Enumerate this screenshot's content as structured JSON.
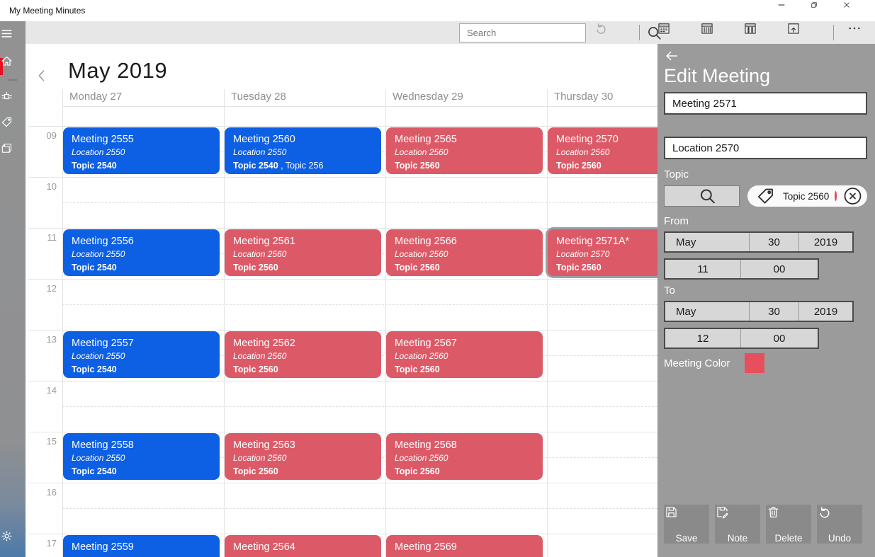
{
  "window": {
    "title": "My Meeting Minutes"
  },
  "titlebar_controls": [
    {
      "icon": "minimize-icon"
    },
    {
      "icon": "restore-icon"
    },
    {
      "icon": "close-icon"
    }
  ],
  "toolbar": {
    "search_placeholder": "Search",
    "search_icon": "search-icon",
    "icons": [
      {
        "icon": "undo-icon",
        "disabled": true
      },
      {
        "icon": "calendar-month-icon"
      },
      {
        "icon": "calendar-week-icon"
      },
      {
        "icon": "calendar-workweek-icon"
      },
      {
        "icon": "calendar-today-icon"
      },
      {
        "icon": "ellipsis-icon"
      }
    ]
  },
  "sidebar": {
    "items": [
      {
        "icon": "menu-icon"
      },
      {
        "icon": "home-icon",
        "active": true
      },
      {
        "icon": "meetings-icon"
      },
      {
        "icon": "tag-icon"
      },
      {
        "icon": "archive-icon"
      },
      {
        "icon": "settings-icon"
      }
    ]
  },
  "calendar": {
    "title": "May 2019",
    "back_icon": "chevron-left-icon",
    "days": [
      "Monday 27",
      "Tuesday 28",
      "Wednesday 29",
      "Thursday 30"
    ],
    "hours": [
      "09",
      "10",
      "11",
      "12",
      "13",
      "14",
      "15",
      "16",
      "17"
    ],
    "meetings": [
      {
        "day": 0,
        "hour": 9,
        "title": "Meeting 2555",
        "location": "Location 2550",
        "topic": "Topic 2540",
        "color": "blue"
      },
      {
        "day": 0,
        "hour": 11,
        "title": "Meeting 2556",
        "location": "Location 2550",
        "topic": "Topic 2540",
        "color": "blue"
      },
      {
        "day": 0,
        "hour": 13,
        "title": "Meeting 2557",
        "location": "Location 2550",
        "topic": "Topic 2540",
        "color": "blue"
      },
      {
        "day": 0,
        "hour": 15,
        "title": "Meeting 2558",
        "location": "Location 2550",
        "topic": "Topic 2540",
        "color": "blue"
      },
      {
        "day": 0,
        "hour": 17,
        "title": "Meeting 2559",
        "color": "blue"
      },
      {
        "day": 1,
        "hour": 9,
        "title": "Meeting 2560",
        "location": "Location 2550",
        "topic": "Topic 2540",
        "topic_extra": " , Topic 256",
        "color": "blue"
      },
      {
        "day": 1,
        "hour": 11,
        "title": "Meeting 2561",
        "location": "Location 2560",
        "topic": "Topic 2560",
        "color": "red"
      },
      {
        "day": 1,
        "hour": 13,
        "title": "Meeting 2562",
        "location": "Location 2560",
        "topic": "Topic 2560",
        "color": "red"
      },
      {
        "day": 1,
        "hour": 15,
        "title": "Meeting 2563",
        "location": "Location 2560",
        "topic": "Topic 2560",
        "color": "red"
      },
      {
        "day": 1,
        "hour": 17,
        "title": "Meeting 2564",
        "color": "red"
      },
      {
        "day": 2,
        "hour": 9,
        "title": "Meeting 2565",
        "location": "Location 2560",
        "topic": "Topic 2560",
        "color": "red"
      },
      {
        "day": 2,
        "hour": 11,
        "title": "Meeting 2566",
        "location": "Location 2560",
        "topic": "Topic 2560",
        "color": "red"
      },
      {
        "day": 2,
        "hour": 13,
        "title": "Meeting 2567",
        "location": "Location 2560",
        "topic": "Topic 2560",
        "color": "red"
      },
      {
        "day": 2,
        "hour": 15,
        "title": "Meeting 2568",
        "location": "Location 2560",
        "topic": "Topic 2560",
        "color": "red"
      },
      {
        "day": 2,
        "hour": 17,
        "title": "Meeting 2569",
        "color": "red"
      },
      {
        "day": 3,
        "hour": 9,
        "title": "Meeting 2570",
        "location": "Location 2560",
        "topic": "Topic 2560",
        "color": "red"
      },
      {
        "day": 3,
        "hour": 11,
        "title": "Meeting 2571A*",
        "location": "Location 2570",
        "topic": "Topic 2560",
        "color": "red",
        "selected": true
      }
    ]
  },
  "panel": {
    "back_icon": "back-arrow-icon",
    "title": "Edit Meeting",
    "name_value": "Meeting 2571",
    "location_value": "Location 2570",
    "topic_label": "Topic",
    "topic_search_icon": "search-icon",
    "topic_chip": {
      "icon": "tag-icon",
      "label": "Topic 2560",
      "close_icon": "close-circle-icon"
    },
    "from_label": "From",
    "from": {
      "month": "May",
      "day": "30",
      "year": "2019",
      "hour": "11",
      "minute": "00"
    },
    "to_label": "To",
    "to": {
      "month": "May",
      "day": "30",
      "year": "2019",
      "hour": "12",
      "minute": "00"
    },
    "meeting_color_label": "Meeting Color",
    "buttons": [
      {
        "label": "Save",
        "icon": "save-icon"
      },
      {
        "label": "Note",
        "icon": "note-icon"
      },
      {
        "label": "Delete",
        "icon": "delete-icon"
      },
      {
        "label": "Undo",
        "icon": "undo-icon"
      }
    ]
  },
  "colors": {
    "meeting_blue": "#0d5fe3",
    "meeting_red": "#dc5a67",
    "accent_red": "#e81123",
    "swatch_red": "#e84f5e",
    "chip_dot_red": "#e04a5c",
    "selection_gray": "#9aa0a6"
  }
}
